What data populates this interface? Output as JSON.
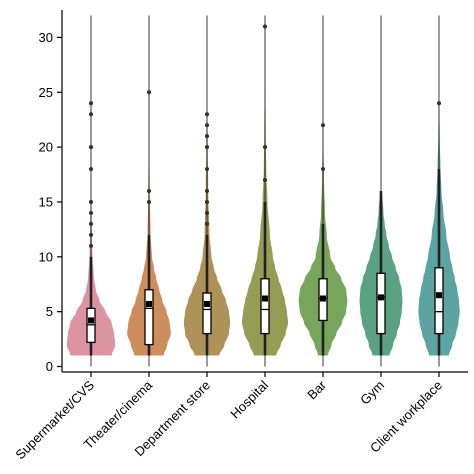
{
  "chart_data": {
    "type": "violin",
    "title": "",
    "xlabel": "",
    "ylabel": "",
    "ylim": [
      -0.5,
      32.5
    ],
    "y_ticks": [
      0,
      5,
      10,
      15,
      20,
      25,
      30
    ],
    "grid": false,
    "legend": "none",
    "categories": [
      "Supermarket/CVS",
      "Theater/cinema",
      "Department store",
      "Hospital",
      "Bar",
      "Gym",
      "Client workplace"
    ],
    "series": [
      {
        "category": "Supermarket/CVS",
        "color": "#d98b9b",
        "min": 1,
        "q1": 2.2,
        "median": 3.8,
        "q3": 5.3,
        "max": 10,
        "mean": 4.2,
        "outliers": [
          11,
          12,
          13,
          14,
          15,
          18,
          20,
          23,
          24
        ],
        "density": [
          [
            1,
            0.85
          ],
          [
            2,
            1.0
          ],
          [
            3,
            0.95
          ],
          [
            4,
            0.85
          ],
          [
            5,
            0.6
          ],
          [
            6,
            0.35
          ],
          [
            7,
            0.2
          ],
          [
            8,
            0.12
          ],
          [
            10,
            0.06
          ],
          [
            12,
            0.04
          ],
          [
            15,
            0.02
          ],
          [
            20,
            0.015
          ],
          [
            24,
            0.01
          ]
        ]
      },
      {
        "category": "Theater/cinema",
        "color": "#c9834e",
        "min": 1,
        "q1": 2,
        "median": 5.3,
        "q3": 7,
        "max": 12,
        "mean": 5.7,
        "outliers": [
          15,
          16,
          25
        ],
        "density": [
          [
            1,
            0.6
          ],
          [
            2,
            0.75
          ],
          [
            3,
            0.9
          ],
          [
            4,
            0.85
          ],
          [
            5,
            0.72
          ],
          [
            6,
            0.55
          ],
          [
            7,
            0.42
          ],
          [
            8,
            0.3
          ],
          [
            9,
            0.2
          ],
          [
            10,
            0.12
          ],
          [
            12,
            0.06
          ],
          [
            16,
            0.03
          ],
          [
            20,
            0.015
          ],
          [
            25,
            0.01
          ]
        ]
      },
      {
        "category": "Department store",
        "color": "#a8894a",
        "min": 1,
        "q1": 3,
        "median": 5.2,
        "q3": 6.7,
        "max": 12,
        "mean": 5.7,
        "outliers": [
          13,
          14,
          15,
          16,
          18,
          20,
          21,
          22,
          23
        ],
        "density": [
          [
            1,
            0.5
          ],
          [
            2,
            0.72
          ],
          [
            3,
            0.9
          ],
          [
            4,
            0.95
          ],
          [
            5,
            0.9
          ],
          [
            6,
            0.78
          ],
          [
            7,
            0.6
          ],
          [
            8,
            0.42
          ],
          [
            9,
            0.28
          ],
          [
            10,
            0.18
          ],
          [
            12,
            0.1
          ],
          [
            16,
            0.05
          ],
          [
            20,
            0.03
          ],
          [
            23,
            0.015
          ]
        ]
      },
      {
        "category": "Hospital",
        "color": "#8c9547",
        "min": 1,
        "q1": 3,
        "median": 5.2,
        "q3": 8,
        "max": 15,
        "mean": 6.2,
        "outliers": [
          17,
          20,
          31
        ],
        "density": [
          [
            1,
            0.45
          ],
          [
            2,
            0.65
          ],
          [
            3,
            0.85
          ],
          [
            4,
            0.95
          ],
          [
            5,
            0.9
          ],
          [
            6,
            0.82
          ],
          [
            7,
            0.7
          ],
          [
            8,
            0.55
          ],
          [
            9,
            0.42
          ],
          [
            10,
            0.32
          ],
          [
            12,
            0.2
          ],
          [
            15,
            0.1
          ],
          [
            18,
            0.05
          ],
          [
            21,
            0.03
          ],
          [
            26,
            0.015
          ],
          [
            31,
            0.01
          ]
        ]
      },
      {
        "category": "Bar",
        "color": "#6a9e4e",
        "min": 1,
        "q1": 4.2,
        "median": 6.2,
        "q3": 8,
        "max": 13,
        "mean": 6.2,
        "outliers": [
          18,
          22
        ],
        "density": [
          [
            1,
            0.2
          ],
          [
            2,
            0.35
          ],
          [
            3,
            0.55
          ],
          [
            4,
            0.78
          ],
          [
            5,
            0.95
          ],
          [
            6,
            1.0
          ],
          [
            7,
            0.95
          ],
          [
            8,
            0.75
          ],
          [
            9,
            0.5
          ],
          [
            10,
            0.3
          ],
          [
            12,
            0.15
          ],
          [
            14,
            0.08
          ],
          [
            17,
            0.04
          ],
          [
            20,
            0.02
          ],
          [
            22,
            0.01
          ]
        ]
      },
      {
        "category": "Gym",
        "color": "#4c9a78",
        "min": 1,
        "q1": 3,
        "median": 6.3,
        "q3": 8.5,
        "max": 16,
        "mean": 6.3,
        "outliers": [],
        "density": [
          [
            1,
            0.35
          ],
          [
            2,
            0.5
          ],
          [
            3,
            0.65
          ],
          [
            4,
            0.78
          ],
          [
            5,
            0.85
          ],
          [
            6,
            0.88
          ],
          [
            7,
            0.85
          ],
          [
            8,
            0.75
          ],
          [
            9,
            0.6
          ],
          [
            10,
            0.45
          ],
          [
            11,
            0.32
          ],
          [
            12,
            0.22
          ],
          [
            13,
            0.15
          ],
          [
            14,
            0.1
          ],
          [
            16,
            0.04
          ]
        ]
      },
      {
        "category": "Client workplace",
        "color": "#4e9b9a",
        "min": 1,
        "q1": 3,
        "median": 5,
        "q3": 9,
        "max": 18,
        "mean": 6.5,
        "outliers": [
          24
        ],
        "density": [
          [
            1,
            0.4
          ],
          [
            2,
            0.55
          ],
          [
            3,
            0.7
          ],
          [
            4,
            0.8
          ],
          [
            5,
            0.85
          ],
          [
            6,
            0.82
          ],
          [
            7,
            0.75
          ],
          [
            8,
            0.65
          ],
          [
            9,
            0.55
          ],
          [
            10,
            0.45
          ],
          [
            12,
            0.3
          ],
          [
            14,
            0.18
          ],
          [
            16,
            0.1
          ],
          [
            18,
            0.06
          ],
          [
            21,
            0.03
          ],
          [
            24,
            0.01
          ]
        ]
      }
    ]
  }
}
